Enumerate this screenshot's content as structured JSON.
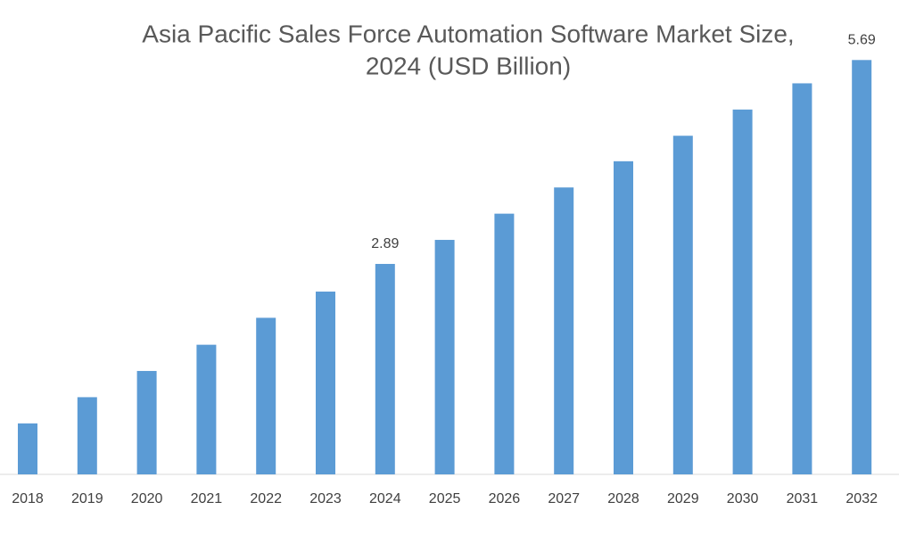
{
  "chart_data": {
    "type": "bar",
    "title": [
      "Asia Pacific Sales Force Automation Software Market Size,",
      "2024 (USD Billion)"
    ],
    "categories": [
      "2018",
      "2019",
      "2020",
      "2021",
      "2022",
      "2023",
      "2024",
      "2025",
      "2026",
      "2027",
      "2028",
      "2029",
      "2030",
      "2031",
      "2032"
    ],
    "values": [
      0.7,
      1.06,
      1.42,
      1.78,
      2.15,
      2.51,
      2.89,
      3.22,
      3.58,
      3.94,
      4.3,
      4.65,
      5.01,
      5.37,
      5.69
    ],
    "value_labels": [
      null,
      null,
      null,
      null,
      null,
      null,
      "2.89",
      null,
      null,
      null,
      null,
      null,
      null,
      null,
      "5.69"
    ],
    "color": "#5b9bd5",
    "ylim": [
      0,
      6
    ]
  }
}
